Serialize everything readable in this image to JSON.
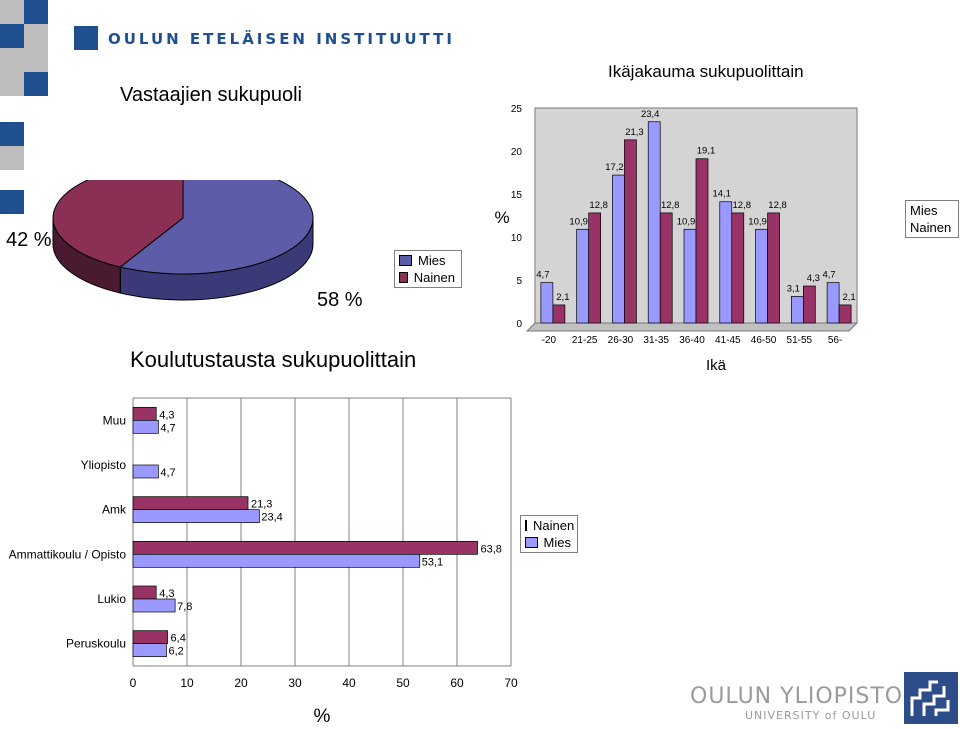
{
  "header": {
    "institute": "OULUN ETELÄISEN INSTITUUTTI"
  },
  "footer": {
    "university": "OULUN YLIOPISTO",
    "university_en": "UNIVERSITY of OULU"
  },
  "colors": {
    "mies": "#9999ff",
    "nainen": "#993366",
    "pie_mies": "#5c5ca8",
    "pie_nainen": "#8c2f55",
    "brand": "#1f4f8f",
    "bar_bg": "#d4d4d4"
  },
  "legend": {
    "mies": "Mies",
    "nainen": "Nainen"
  },
  "chart_data": [
    {
      "type": "pie",
      "title": "Vastaajien sukupuoli",
      "slices": [
        {
          "name": "Mies",
          "value": 58,
          "label": "58 %"
        },
        {
          "name": "Nainen",
          "value": 42,
          "label": "42 %"
        }
      ],
      "legend_position": "right"
    },
    {
      "type": "bar",
      "title": "Ikäjakauma sukupuolittain",
      "xlabel": "Ikä",
      "ylabel": "%",
      "ylim": [
        0,
        25
      ],
      "yticks": [
        "0",
        "5",
        "10",
        "15",
        "20",
        "25"
      ],
      "categories": [
        "-20",
        "21-25",
        "26-30",
        "31-35",
        "36-40",
        "41-45",
        "46-50",
        "51-55",
        "56-"
      ],
      "series": [
        {
          "name": "Mies",
          "values": [
            4.7,
            10.9,
            17.2,
            23.4,
            10.9,
            14.1,
            10.9,
            3.1,
            4.7
          ],
          "labels": [
            "4,7",
            "10,9",
            "17,2",
            "23,4",
            "10,9",
            "14,1",
            "10,9",
            "3,1",
            "4,7"
          ]
        },
        {
          "name": "Nainen",
          "values": [
            2.1,
            12.8,
            21.3,
            12.8,
            19.1,
            12.8,
            12.8,
            4.3,
            2.1
          ],
          "labels": [
            "2,1",
            "12,8",
            "21,3",
            "12,8",
            "19,1",
            "12,8",
            "12,8",
            "4,3",
            "2,1"
          ]
        }
      ],
      "grid": false,
      "legend_position": "right"
    },
    {
      "type": "bar",
      "orientation": "horizontal",
      "title": "Koulutustausta sukupuolittain",
      "xlabel": "%",
      "xlim": [
        0,
        70
      ],
      "xticks": [
        "0",
        "10",
        "20",
        "30",
        "40",
        "50",
        "60",
        "70"
      ],
      "categories": [
        "Muu",
        "Yliopisto",
        "Amk",
        "Ammattikoulu / Opisto",
        "Lukio",
        "Peruskoulu"
      ],
      "series": [
        {
          "name": "Nainen",
          "values": [
            4.3,
            null,
            21.3,
            63.8,
            4.3,
            6.4
          ],
          "labels": [
            "4,3",
            "",
            "21,3",
            "63,8",
            "4,3",
            "6,4"
          ]
        },
        {
          "name": "Mies",
          "values": [
            4.7,
            4.7,
            23.4,
            53.1,
            7.8,
            6.2
          ],
          "labels": [
            "4,7",
            "4,7",
            "23,4",
            "53,1",
            "7,8",
            "6,2"
          ]
        }
      ],
      "grid": true,
      "legend_position": "right"
    }
  ]
}
